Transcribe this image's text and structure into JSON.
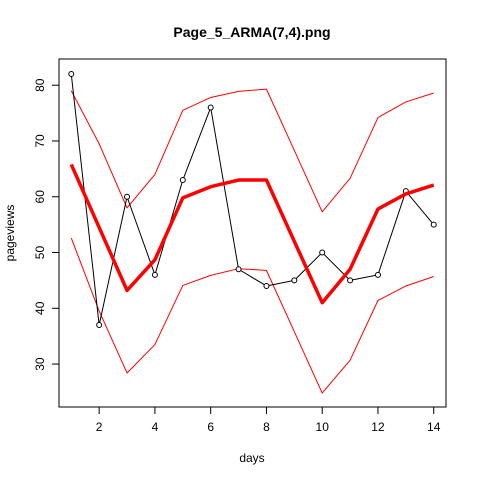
{
  "chart_data": {
    "type": "line",
    "title": "Page_5_ARMA(7,4).png",
    "xlabel": "days",
    "ylabel": "pageviews",
    "xlim": [
      0.56,
      14.44
    ],
    "ylim": [
      22.3,
      84.7
    ],
    "x_ticks": [
      2,
      4,
      6,
      8,
      10,
      12,
      14
    ],
    "y_ticks": [
      30,
      40,
      50,
      60,
      70,
      80
    ],
    "grid": false,
    "legend": "none",
    "x": [
      1,
      2,
      3,
      4,
      5,
      6,
      7,
      8,
      9,
      10,
      11,
      12,
      13,
      14
    ],
    "series": [
      {
        "role": "observed",
        "color": "#000000",
        "markers": "open-circle",
        "values": [
          82,
          37,
          60,
          46,
          63,
          76,
          47,
          44,
          45,
          50,
          45,
          46,
          61,
          55
        ]
      },
      {
        "role": "fitted",
        "color": "#ff0000",
        "markers": "none",
        "thick": true,
        "values": [
          65.8,
          54.5,
          43.2,
          48.7,
          59.8,
          61.8,
          63.0,
          63.0,
          52.0,
          41.0,
          47.0,
          57.8,
          60.5,
          62.1
        ]
      },
      {
        "role": "upper-band",
        "color": "#ff0000",
        "markers": "none",
        "values": [
          79.0,
          69.5,
          58.0,
          64.0,
          75.5,
          77.8,
          78.9,
          79.3,
          68.3,
          57.3,
          63.3,
          74.2,
          77.0,
          78.6
        ]
      },
      {
        "role": "lower-band",
        "color": "#ff0000",
        "markers": "none",
        "values": [
          52.6,
          39.5,
          28.4,
          33.5,
          44.1,
          45.9,
          47.1,
          46.8,
          35.8,
          24.8,
          30.7,
          41.4,
          44.0,
          45.7
        ]
      }
    ]
  }
}
